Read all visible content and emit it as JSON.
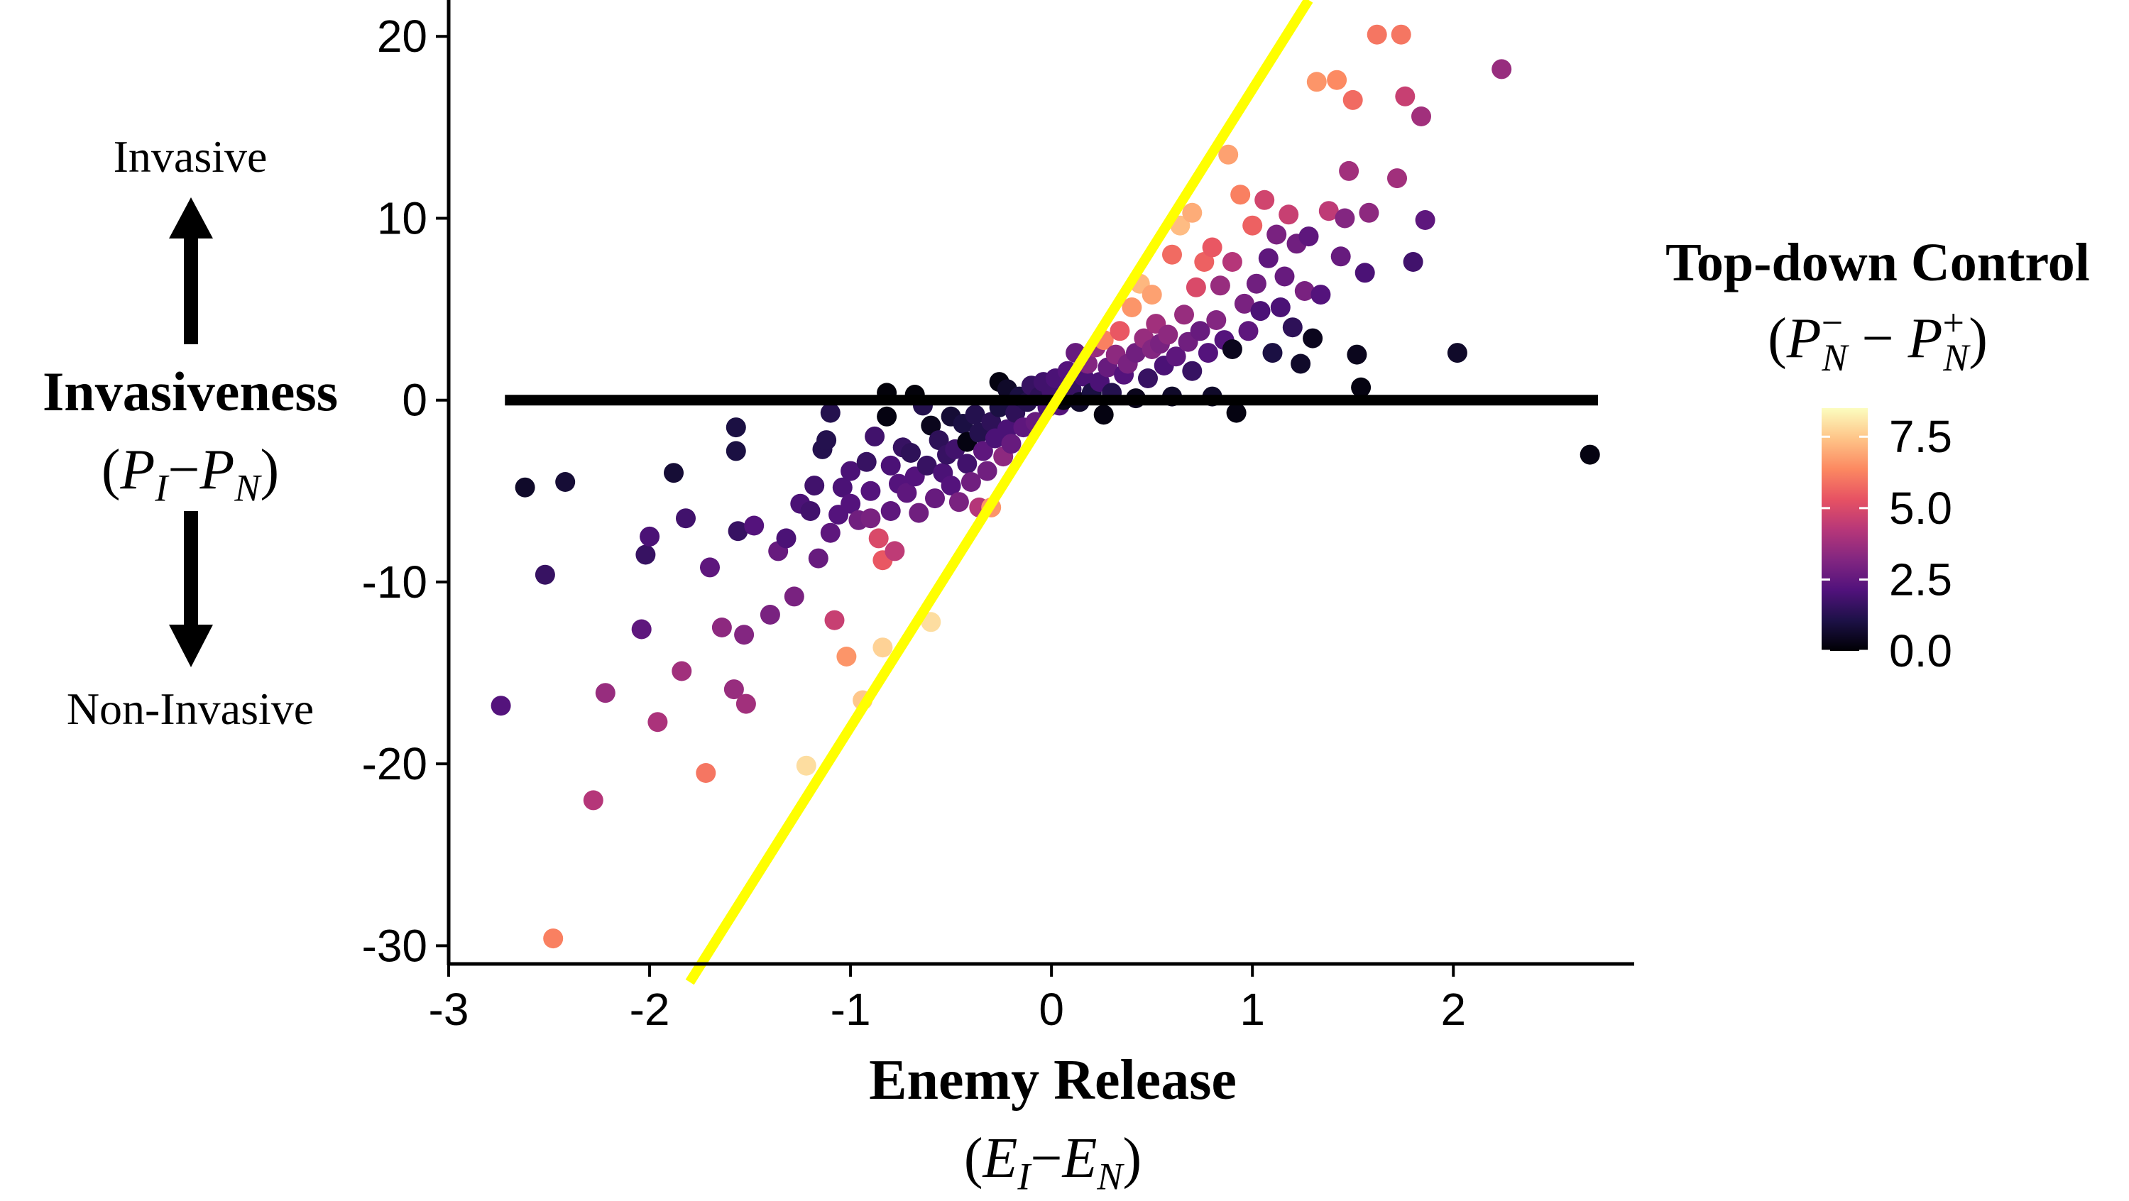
{
  "chart_data": {
    "type": "scatter",
    "xlim": [
      -3,
      2.9
    ],
    "ylim": [
      -31,
      22
    ],
    "x_ticks": [
      -3,
      -2,
      -1,
      0,
      1,
      2
    ],
    "y_ticks": [
      -30,
      -20,
      -10,
      0,
      10,
      20
    ],
    "grid": false,
    "xlabel": "Enemy Release",
    "xlabel_math": {
      "open": "(",
      "a": "E",
      "a_sub": "I",
      "op": "−",
      "b": "E",
      "b_sub": "N",
      "close": ")"
    },
    "ylabel": "Invasiveness",
    "ylabel_math": {
      "open": "(",
      "a": "P",
      "a_sub": "I",
      "op": "−",
      "b": "P",
      "b_sub": "N",
      "close": ")"
    },
    "y_annotation_top": "Invasive",
    "y_annotation_bottom": "Non-Invasive",
    "colorbar": {
      "title": "Top-down Control",
      "title_math": {
        "open": "(",
        "a": "P",
        "a_sub": "N",
        "a_sup": "−",
        "op": "−",
        "b": "P",
        "b_sub": "N",
        "b_sup": "+",
        "close": ")"
      },
      "min": 0,
      "max": 8.5,
      "ticks": [
        0.0,
        2.5,
        5.0,
        7.5
      ],
      "tick_labels": [
        "0.0",
        "2.5",
        "5.0",
        "7.5"
      ],
      "colormap": "magma",
      "stops": [
        "#000004",
        "#1d1147",
        "#51127c",
        "#822681",
        "#b73779",
        "#e75263",
        "#fc8961",
        "#fec488",
        "#fcfdbf"
      ]
    },
    "reference_lines": [
      {
        "type": "horizontal",
        "y": 0,
        "x_from": -2.72,
        "x_to": 2.72,
        "color": "#000000"
      },
      {
        "type": "line",
        "x1": -1.8,
        "y1": -32,
        "x2": 1.28,
        "y2": 22,
        "color": "#ffff00"
      }
    ],
    "points": [
      [
        -2.74,
        -16.8,
        2.2
      ],
      [
        -2.62,
        -4.8,
        0.6
      ],
      [
        -2.52,
        -9.6,
        1.6
      ],
      [
        -2.42,
        -4.5,
        0.8
      ],
      [
        -2.48,
        -29.6,
        6.2
      ],
      [
        -2.28,
        -22.0,
        4.2
      ],
      [
        -2.22,
        -16.1,
        3.6
      ],
      [
        -2.04,
        -12.6,
        2.4
      ],
      [
        -2.02,
        -8.5,
        1.6
      ],
      [
        -2.0,
        -7.5,
        2.0
      ],
      [
        -1.96,
        -17.7,
        4.0
      ],
      [
        -1.88,
        -4.0,
        0.8
      ],
      [
        -1.84,
        -14.9,
        3.8
      ],
      [
        -1.82,
        -6.5,
        1.8
      ],
      [
        -1.72,
        -20.5,
        6.0
      ],
      [
        -1.7,
        -9.2,
        2.4
      ],
      [
        -1.64,
        -12.5,
        3.4
      ],
      [
        -1.58,
        -15.9,
        3.6
      ],
      [
        -1.57,
        -1.5,
        1.0
      ],
      [
        -1.57,
        -2.8,
        1.0
      ],
      [
        -1.56,
        -7.2,
        1.6
      ],
      [
        -1.53,
        -12.9,
        3.2
      ],
      [
        -1.52,
        -16.7,
        3.8
      ],
      [
        -1.48,
        -6.9,
        2.2
      ],
      [
        -1.4,
        -11.8,
        3.0
      ],
      [
        -1.36,
        -8.3,
        2.6
      ],
      [
        -1.32,
        -7.6,
        2.0
      ],
      [
        -1.28,
        -10.8,
        3.0
      ],
      [
        -1.25,
        -5.7,
        2.0
      ],
      [
        -1.22,
        -20.1,
        7.9
      ],
      [
        -1.2,
        -6.1,
        1.8
      ],
      [
        -1.18,
        -4.7,
        1.8
      ],
      [
        -1.16,
        -8.7,
        2.6
      ],
      [
        -1.14,
        -2.7,
        1.2
      ],
      [
        -1.12,
        -2.2,
        1.2
      ],
      [
        -1.1,
        -0.7,
        1.2
      ],
      [
        -1.1,
        -7.3,
        2.4
      ],
      [
        -1.08,
        -12.1,
        4.6
      ],
      [
        -1.04,
        -4.8,
        2.0
      ],
      [
        -1.06,
        -6.3,
        2.2
      ],
      [
        -1.02,
        -14.1,
        6.6
      ],
      [
        -1.0,
        -3.9,
        2.0
      ],
      [
        -1.0,
        -5.7,
        2.2
      ],
      [
        -0.96,
        -6.6,
        2.8
      ],
      [
        -0.94,
        -16.5,
        7.5
      ],
      [
        -0.92,
        -3.4,
        1.6
      ],
      [
        -0.9,
        -5.0,
        2.2
      ],
      [
        -0.9,
        -6.5,
        3.0
      ],
      [
        -0.88,
        -2.0,
        1.8
      ],
      [
        -0.86,
        -7.6,
        5.0
      ],
      [
        -0.84,
        -8.8,
        5.4
      ],
      [
        -0.84,
        -13.6,
        7.7
      ],
      [
        -0.82,
        -0.9,
        0.2
      ],
      [
        -0.82,
        0.4,
        0.1
      ],
      [
        -0.8,
        -3.6,
        2.0
      ],
      [
        -0.8,
        -6.1,
        2.4
      ],
      [
        -0.78,
        -8.3,
        4.4
      ],
      [
        -0.76,
        -4.6,
        2.2
      ],
      [
        -0.74,
        -2.6,
        1.6
      ],
      [
        -0.72,
        -5.1,
        2.4
      ],
      [
        -0.7,
        -2.9,
        1.4
      ],
      [
        -0.68,
        -4.2,
        2.2
      ],
      [
        -0.68,
        0.3,
        0.1
      ],
      [
        -0.66,
        -6.2,
        2.8
      ],
      [
        -0.64,
        -0.3,
        1.2
      ],
      [
        -0.62,
        -3.6,
        1.6
      ],
      [
        -0.6,
        -1.4,
        0.4
      ],
      [
        -0.6,
        -12.2,
        7.9
      ],
      [
        -0.58,
        -5.4,
        2.6
      ],
      [
        -0.56,
        -2.2,
        1.4
      ],
      [
        -0.54,
        -4.0,
        2.0
      ],
      [
        -0.52,
        -3.0,
        1.6
      ],
      [
        -0.5,
        -0.9,
        0.8
      ],
      [
        -0.5,
        -4.7,
        2.2
      ],
      [
        -0.48,
        -2.7,
        1.8
      ],
      [
        -0.46,
        -5.6,
        3.0
      ],
      [
        -0.44,
        -1.3,
        1.0
      ],
      [
        -0.42,
        -3.5,
        1.8
      ],
      [
        -0.42,
        -2.3,
        0.2
      ],
      [
        -0.4,
        -4.5,
        2.8
      ],
      [
        -0.38,
        -0.8,
        1.2
      ],
      [
        -0.36,
        -5.9,
        4.2
      ],
      [
        -0.36,
        -1.8,
        1.2
      ],
      [
        -0.34,
        -2.8,
        2.4
      ],
      [
        -0.32,
        -3.9,
        2.8
      ],
      [
        -0.3,
        -1.2,
        1.4
      ],
      [
        -0.3,
        -5.9,
        6.6
      ],
      [
        -0.28,
        -2.1,
        2.0
      ],
      [
        -0.26,
        -0.4,
        1.0
      ],
      [
        -0.26,
        1.0,
        0.2
      ],
      [
        -0.24,
        -3.1,
        3.4
      ],
      [
        -0.22,
        -1.6,
        2.0
      ],
      [
        -0.22,
        0.6,
        0.6
      ],
      [
        -0.2,
        -2.4,
        2.6
      ],
      [
        -0.18,
        -0.7,
        1.4
      ],
      [
        -0.16,
        0.2,
        1.0
      ],
      [
        -0.14,
        -1.5,
        2.4
      ],
      [
        -0.12,
        -0.1,
        1.2
      ],
      [
        -0.1,
        0.8,
        1.6
      ],
      [
        -0.08,
        -1.2,
        2.6
      ],
      [
        -0.06,
        0.2,
        1.4
      ],
      [
        -0.04,
        1.0,
        1.8
      ],
      [
        -0.02,
        -0.4,
        2.0
      ],
      [
        0.0,
        0.5,
        1.8
      ],
      [
        0.02,
        1.2,
        2.0
      ],
      [
        0.04,
        -0.3,
        2.2
      ],
      [
        0.06,
        0.0,
        0.2
      ],
      [
        0.08,
        1.6,
        2.2
      ],
      [
        0.1,
        0.6,
        1.6
      ],
      [
        0.12,
        2.6,
        2.6
      ],
      [
        0.14,
        -0.1,
        0.6
      ],
      [
        0.16,
        1.3,
        2.0
      ],
      [
        0.18,
        2.0,
        3.2
      ],
      [
        0.2,
        0.4,
        1.0
      ],
      [
        0.22,
        2.9,
        3.6
      ],
      [
        0.24,
        1.0,
        2.0
      ],
      [
        0.26,
        -0.8,
        0.2
      ],
      [
        0.26,
        3.3,
        6.2
      ],
      [
        0.28,
        1.8,
        2.6
      ],
      [
        0.3,
        0.4,
        1.2
      ],
      [
        0.32,
        2.5,
        3.4
      ],
      [
        0.34,
        3.8,
        5.4
      ],
      [
        0.36,
        1.4,
        2.2
      ],
      [
        0.38,
        2.0,
        3.0
      ],
      [
        0.4,
        5.1,
        6.6
      ],
      [
        0.42,
        0.1,
        0.4
      ],
      [
        0.42,
        2.6,
        2.8
      ],
      [
        0.44,
        6.4,
        7.2
      ],
      [
        0.46,
        3.4,
        3.6
      ],
      [
        0.48,
        1.2,
        1.6
      ],
      [
        0.5,
        2.8,
        3.2
      ],
      [
        0.5,
        5.8,
        6.8
      ],
      [
        0.52,
        4.2,
        3.8
      ],
      [
        0.54,
        3.1,
        3.0
      ],
      [
        0.56,
        1.9,
        2.0
      ],
      [
        0.58,
        3.6,
        3.4
      ],
      [
        0.6,
        8.0,
        5.8
      ],
      [
        0.6,
        0.2,
        0.6
      ],
      [
        0.62,
        2.4,
        2.4
      ],
      [
        0.64,
        9.6,
        7.3
      ],
      [
        0.66,
        4.7,
        3.6
      ],
      [
        0.68,
        3.2,
        2.8
      ],
      [
        0.7,
        10.3,
        7.0
      ],
      [
        0.7,
        1.6,
        1.6
      ],
      [
        0.72,
        6.2,
        5.0
      ],
      [
        0.74,
        3.8,
        2.6
      ],
      [
        0.76,
        7.6,
        5.6
      ],
      [
        0.78,
        2.6,
        2.2
      ],
      [
        0.8,
        8.4,
        5.4
      ],
      [
        0.8,
        0.2,
        0.6
      ],
      [
        0.82,
        4.4,
        3.2
      ],
      [
        0.84,
        6.3,
        3.6
      ],
      [
        0.86,
        3.3,
        2.2
      ],
      [
        0.88,
        13.5,
        6.8
      ],
      [
        0.9,
        7.6,
        4.2
      ],
      [
        0.9,
        2.8,
        0.4
      ],
      [
        0.92,
        -0.7,
        0.2
      ],
      [
        0.94,
        11.3,
        6.2
      ],
      [
        0.96,
        5.3,
        3.0
      ],
      [
        0.98,
        3.8,
        2.4
      ],
      [
        1.0,
        9.6,
        5.6
      ],
      [
        1.02,
        6.4,
        2.8
      ],
      [
        1.04,
        4.9,
        2.0
      ],
      [
        1.06,
        11.0,
        4.8
      ],
      [
        1.08,
        7.8,
        2.4
      ],
      [
        1.1,
        2.6,
        1.0
      ],
      [
        1.12,
        9.1,
        3.0
      ],
      [
        1.14,
        5.1,
        2.0
      ],
      [
        1.16,
        6.8,
        2.6
      ],
      [
        1.18,
        10.2,
        4.6
      ],
      [
        1.2,
        4.0,
        1.4
      ],
      [
        1.22,
        8.6,
        2.8
      ],
      [
        1.24,
        2.0,
        0.6
      ],
      [
        1.26,
        6.0,
        3.0
      ],
      [
        1.28,
        9.0,
        2.4
      ],
      [
        1.3,
        3.4,
        0.4
      ],
      [
        1.32,
        17.5,
        6.6
      ],
      [
        1.34,
        5.8,
        2.2
      ],
      [
        1.38,
        10.4,
        4.4
      ],
      [
        1.42,
        17.6,
        6.4
      ],
      [
        1.44,
        7.9,
        2.6
      ],
      [
        1.46,
        10.0,
        3.2
      ],
      [
        1.48,
        12.6,
        3.8
      ],
      [
        1.5,
        16.5,
        5.8
      ],
      [
        1.52,
        2.5,
        0.4
      ],
      [
        1.54,
        0.7,
        0.2
      ],
      [
        1.56,
        7.0,
        2.0
      ],
      [
        1.58,
        10.3,
        3.4
      ],
      [
        1.62,
        20.1,
        6.0
      ],
      [
        1.72,
        12.2,
        3.8
      ],
      [
        1.74,
        20.1,
        6.0
      ],
      [
        1.76,
        16.7,
        4.6
      ],
      [
        1.8,
        7.6,
        1.8
      ],
      [
        1.84,
        15.6,
        3.8
      ],
      [
        1.86,
        9.9,
        2.4
      ],
      [
        2.02,
        2.6,
        0.6
      ],
      [
        2.24,
        18.2,
        3.6
      ],
      [
        2.68,
        -3.0,
        0.2
      ]
    ]
  }
}
